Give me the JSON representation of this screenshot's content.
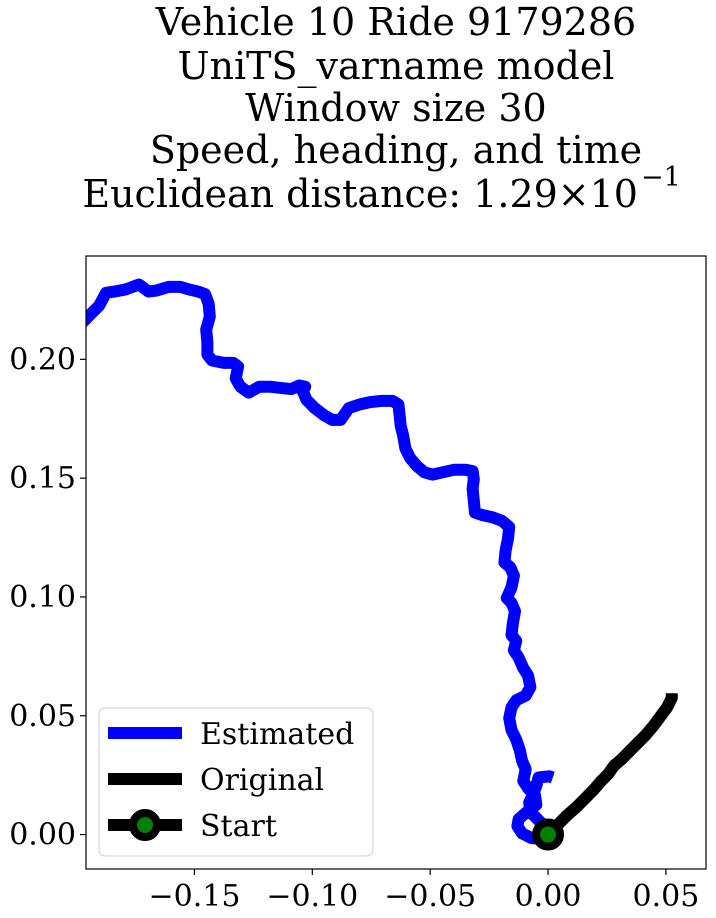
{
  "chart_data": {
    "type": "line",
    "title_lines": [
      "Vehicle 10 Ride 9179286",
      "UniTS_varname model",
      "Window size 30",
      "Speed, heading, and time",
      "Euclidean distance: 1.29×10",
      "−1"
    ],
    "xlabel": "",
    "ylabel": "",
    "xlim": [
      -0.196,
      0.067
    ],
    "ylim": [
      -0.0145,
      0.2435
    ],
    "xticks": [
      -0.15,
      -0.1,
      -0.05,
      0.0,
      0.05
    ],
    "xtick_labels": [
      "−0.15",
      "−0.10",
      "−0.05",
      "0.00",
      "0.05"
    ],
    "yticks": [
      0.0,
      0.05,
      0.1,
      0.15,
      0.2
    ],
    "ytick_labels": [
      "0.00",
      "0.05",
      "0.10",
      "0.15",
      "0.20"
    ],
    "grid": false,
    "legend_position": "lower-left",
    "series": [
      {
        "name": "Estimated",
        "color": "#0000ff",
        "points": [
          [
            -0.1985,
            0.2145
          ],
          [
            -0.194,
            0.219
          ],
          [
            -0.1905,
            0.2225
          ],
          [
            -0.1875,
            0.228
          ],
          [
            -0.184,
            0.2285
          ],
          [
            -0.179,
            0.2295
          ],
          [
            -0.1735,
            0.2315
          ],
          [
            -0.1695,
            0.2285
          ],
          [
            -0.166,
            0.229
          ],
          [
            -0.161,
            0.2305
          ],
          [
            -0.156,
            0.2305
          ],
          [
            -0.1525,
            0.2295
          ],
          [
            -0.1485,
            0.2285
          ],
          [
            -0.1455,
            0.2275
          ],
          [
            -0.144,
            0.2235
          ],
          [
            -0.1435,
            0.218
          ],
          [
            -0.145,
            0.2125
          ],
          [
            -0.1445,
            0.207
          ],
          [
            -0.1445,
            0.202
          ],
          [
            -0.1425,
            0.1995
          ],
          [
            -0.1375,
            0.1985
          ],
          [
            -0.1335,
            0.1985
          ],
          [
            -0.1315,
            0.197
          ],
          [
            -0.1325,
            0.192
          ],
          [
            -0.1305,
            0.1885
          ],
          [
            -0.127,
            0.186
          ],
          [
            -0.1225,
            0.1885
          ],
          [
            -0.118,
            0.1885
          ],
          [
            -0.1135,
            0.188
          ],
          [
            -0.109,
            0.1875
          ],
          [
            -0.1055,
            0.189
          ],
          [
            -0.103,
            0.1885
          ],
          [
            -0.104,
            0.1865
          ],
          [
            -0.1025,
            0.183
          ],
          [
            -0.099,
            0.1795
          ],
          [
            -0.095,
            0.1765
          ],
          [
            -0.0915,
            0.1745
          ],
          [
            -0.088,
            0.1745
          ],
          [
            -0.0845,
            0.1795
          ],
          [
            -0.08,
            0.181
          ],
          [
            -0.0755,
            0.182
          ],
          [
            -0.0705,
            0.1825
          ],
          [
            -0.066,
            0.1825
          ],
          [
            -0.0635,
            0.181
          ],
          [
            -0.063,
            0.177
          ],
          [
            -0.0625,
            0.172
          ],
          [
            -0.0615,
            0.168
          ],
          [
            -0.0605,
            0.1625
          ],
          [
            -0.0585,
            0.1585
          ],
          [
            -0.0555,
            0.155
          ],
          [
            -0.0525,
            0.1525
          ],
          [
            -0.049,
            0.1515
          ],
          [
            -0.0445,
            0.1525
          ],
          [
            -0.04,
            0.1535
          ],
          [
            -0.035,
            0.1535
          ],
          [
            -0.032,
            0.153
          ],
          [
            -0.0315,
            0.1495
          ],
          [
            -0.032,
            0.1455
          ],
          [
            -0.0315,
            0.1405
          ],
          [
            -0.031,
            0.1355
          ],
          [
            -0.028,
            0.1345
          ],
          [
            -0.0235,
            0.1335
          ],
          [
            -0.0195,
            0.132
          ],
          [
            -0.0165,
            0.1295
          ],
          [
            -0.017,
            0.1245
          ],
          [
            -0.018,
            0.1195
          ],
          [
            -0.0185,
            0.1145
          ],
          [
            -0.016,
            0.1125
          ],
          [
            -0.0145,
            0.109
          ],
          [
            -0.0155,
            0.104
          ],
          [
            -0.0175,
            0.0995
          ],
          [
            -0.0155,
            0.0975
          ],
          [
            -0.014,
            0.094
          ],
          [
            -0.015,
            0.0885
          ],
          [
            -0.0155,
            0.084
          ],
          [
            -0.0135,
            0.0815
          ],
          [
            -0.0145,
            0.0775
          ],
          [
            -0.0125,
            0.0745
          ],
          [
            -0.0105,
            0.07
          ],
          [
            -0.0085,
            0.067
          ],
          [
            -0.0075,
            0.062
          ],
          [
            -0.0095,
            0.0585
          ],
          [
            -0.0135,
            0.0565
          ],
          [
            -0.0155,
            0.0535
          ],
          [
            -0.0165,
            0.049
          ],
          [
            -0.0155,
            0.044
          ],
          [
            -0.0135,
            0.04
          ],
          [
            -0.012,
            0.0355
          ],
          [
            -0.011,
            0.031
          ],
          [
            -0.0095,
            0.0275
          ],
          [
            -0.0105,
            0.0225
          ],
          [
            -0.0085,
            0.0195
          ],
          [
            -0.0055,
            0.0165
          ],
          [
            -0.005,
            0.0125
          ],
          [
            -0.009,
            0.0095
          ],
          [
            -0.0125,
            0.0065
          ],
          [
            -0.013,
            0.0035
          ],
          [
            -0.011,
            0.0005
          ],
          [
            -0.007,
            -0.0015
          ],
          [
            -0.0025,
            -0.002
          ],
          [
            0.0,
            0.001
          ],
          [
            -0.0025,
            0.0045
          ],
          [
            -0.0075,
            0.0095
          ],
          [
            -0.008,
            0.0135
          ],
          [
            -0.0065,
            0.0165
          ],
          [
            -0.005,
            0.0205
          ],
          [
            -0.004,
            0.024
          ],
          [
            0.0005,
            0.0245
          ],
          [
            0.002,
            0.024
          ]
        ]
      },
      {
        "name": "Original",
        "color": "#000000",
        "points": [
          [
            0.0,
            0.0
          ],
          [
            0.004,
            0.004
          ],
          [
            0.008,
            0.008
          ],
          [
            0.012,
            0.0115
          ],
          [
            0.016,
            0.0155
          ],
          [
            0.0195,
            0.019
          ],
          [
            0.0225,
            0.0225
          ],
          [
            0.0255,
            0.0255
          ],
          [
            0.028,
            0.029
          ],
          [
            0.031,
            0.0315
          ],
          [
            0.0345,
            0.035
          ],
          [
            0.038,
            0.0385
          ],
          [
            0.0415,
            0.042
          ],
          [
            0.0445,
            0.0455
          ],
          [
            0.0475,
            0.0495
          ],
          [
            0.0505,
            0.0535
          ],
          [
            0.0525,
            0.0575
          ],
          [
            0.0525,
            0.0595
          ]
        ]
      }
    ],
    "start_point": {
      "name": "Start",
      "x": 0.0,
      "y": 0.0,
      "edge_color": "#000000",
      "face_color": "#008000"
    },
    "legend_entries": [
      "Estimated",
      "Original",
      "Start"
    ]
  }
}
